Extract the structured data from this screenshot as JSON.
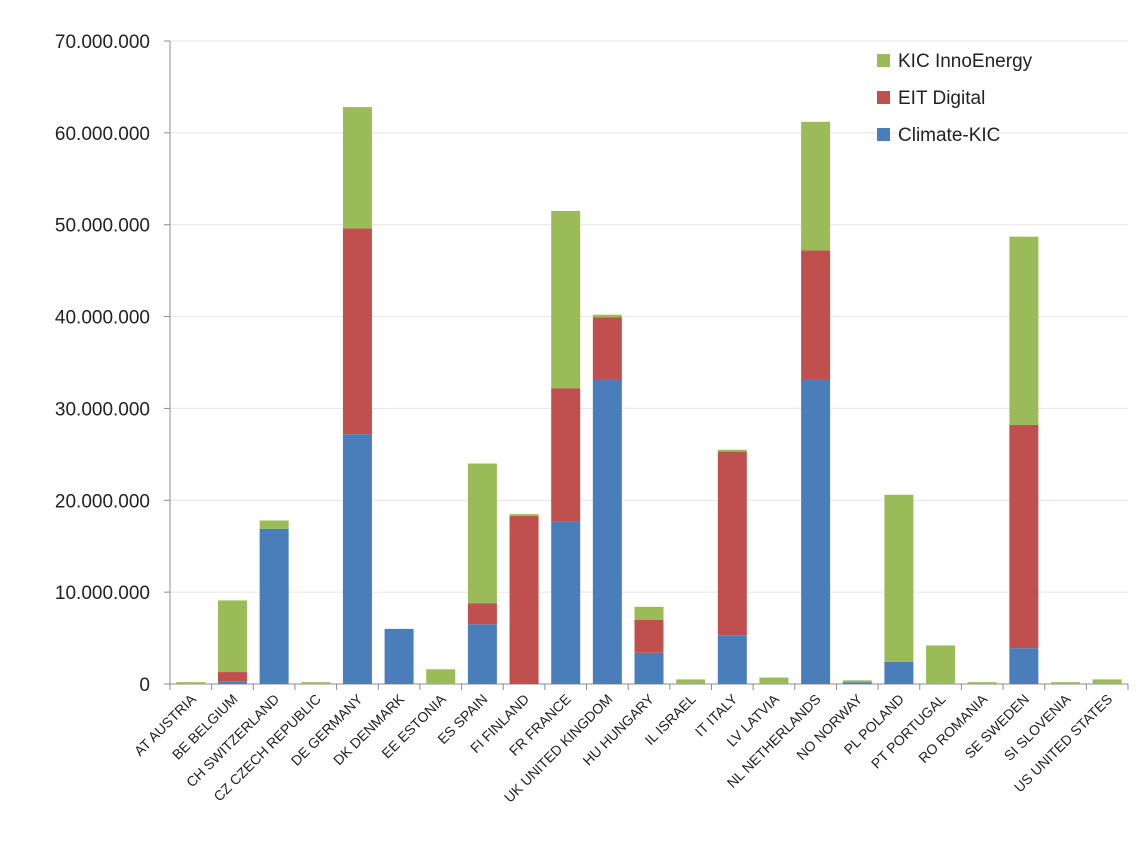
{
  "chart_data": {
    "type": "bar",
    "stacked": true,
    "title": "",
    "xlabel": "",
    "ylabel": "",
    "ylim": [
      0,
      70000000
    ],
    "yticks": [
      0,
      10000000,
      20000000,
      30000000,
      40000000,
      50000000,
      60000000,
      70000000
    ],
    "ytick_labels": [
      "0",
      "10.000.000",
      "20.000.000",
      "30.000.000",
      "40.000.000",
      "50.000.000",
      "60.000.000",
      "70.000.000"
    ],
    "grid": true,
    "legend_position": "top-right",
    "categories": [
      "AT AUSTRIA",
      "BE BELGIUM",
      "CH SWITZERLAND",
      "CZ CZECH REPUBLIC",
      "DE GERMANY",
      "DK DENMARK",
      "EE ESTONIA",
      "ES SPAIN",
      "FI FINLAND",
      "FR FRANCE",
      "UK UNITED KINGDOM",
      "HU HUNGARY",
      "IL ISRAEL",
      "IT ITALY",
      "LV LATVIA",
      "NL NETHERLANDS",
      "NO NORWAY",
      "PL POLAND",
      "PT PORTUGAL",
      "RO ROMANIA",
      "SE SWEDEN",
      "SI SLOVENIA",
      "US UNITED STATES"
    ],
    "series": [
      {
        "name": "Climate-KIC",
        "color": "#4a7ebb",
        "values": [
          0,
          300000,
          16900000,
          0,
          27200000,
          6000000,
          0,
          6500000,
          0,
          17700000,
          33100000,
          3400000,
          0,
          5300000,
          0,
          33100000,
          200000,
          2400000,
          0,
          0,
          3900000,
          0,
          0
        ]
      },
      {
        "name": "EIT Digital",
        "color": "#c0504d",
        "values": [
          0,
          1000000,
          0,
          0,
          22400000,
          0,
          0,
          2300000,
          18300000,
          14500000,
          6800000,
          3600000,
          0,
          20000000,
          0,
          14100000,
          0,
          0,
          0,
          0,
          24300000,
          0,
          0
        ]
      },
      {
        "name": "KIC InnoEnergy",
        "color": "#9bbb59",
        "values": [
          200000,
          7800000,
          900000,
          200000,
          13200000,
          0,
          1600000,
          15200000,
          200000,
          19300000,
          300000,
          1400000,
          500000,
          200000,
          700000,
          14000000,
          200000,
          18200000,
          4200000,
          200000,
          20500000,
          200000,
          500000
        ]
      }
    ]
  }
}
